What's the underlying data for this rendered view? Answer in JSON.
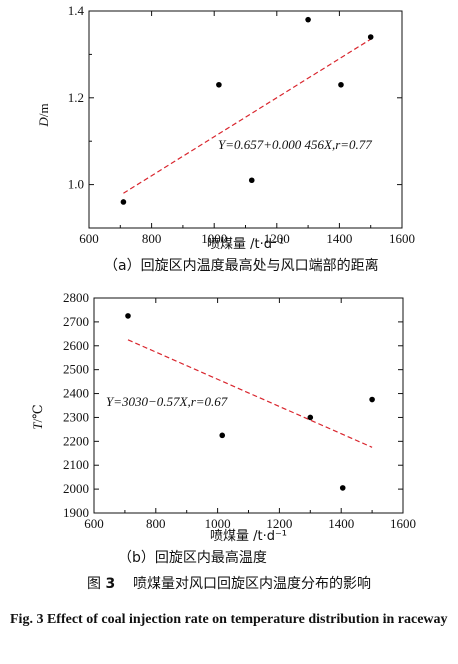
{
  "chart_data": [
    {
      "type": "scatter",
      "panel_label": "（a）",
      "subtitle": "回旋区内温度最高处与风口端部的距离",
      "xlabel": "喷煤量 /t·d⁻¹",
      "ylabel_var": "D",
      "ylabel_unit": "/m",
      "xlim": [
        600,
        1600
      ],
      "ylim": [
        0.9,
        1.4
      ],
      "xticks": [
        "600",
        "800",
        "1000",
        "1200",
        "1400",
        "1600"
      ],
      "yticks": [
        "1.0",
        "1.2",
        "1.4"
      ],
      "ytick_values": [
        1.0,
        1.2,
        1.4
      ],
      "points": [
        {
          "x": 710,
          "y": 0.96
        },
        {
          "x": 1015,
          "y": 1.23
        },
        {
          "x": 1120,
          "y": 1.01
        },
        {
          "x": 1300,
          "y": 1.38
        },
        {
          "x": 1405,
          "y": 1.23
        },
        {
          "x": 1500,
          "y": 1.34
        }
      ],
      "fit": {
        "x": [
          710,
          1500
        ],
        "y": [
          0.98,
          1.335
        ]
      },
      "equation": "Y=0.657+0.000 456X,r=0.77"
    },
    {
      "type": "scatter",
      "panel_label": "（b）",
      "subtitle": "回旋区内最高温度",
      "xlabel": "喷煤量 /t·d⁻¹",
      "ylabel_var": "T",
      "ylabel_unit": "/℃",
      "xlim": [
        600,
        1600
      ],
      "ylim": [
        1900,
        2800
      ],
      "xticks": [
        "600",
        "800",
        "1000",
        "1200",
        "1400",
        "1600"
      ],
      "yticks": [
        "1900",
        "2000",
        "2100",
        "2200",
        "2300",
        "2400",
        "2500",
        "2600",
        "2700",
        "2800"
      ],
      "ytick_values": [
        1900,
        2000,
        2100,
        2200,
        2300,
        2400,
        2500,
        2600,
        2700,
        2800
      ],
      "points": [
        {
          "x": 710,
          "y": 2725
        },
        {
          "x": 1015,
          "y": 2225
        },
        {
          "x": 1300,
          "y": 2300
        },
        {
          "x": 1405,
          "y": 2005
        },
        {
          "x": 1500,
          "y": 2375
        }
      ],
      "fit": {
        "x": [
          710,
          1500
        ],
        "y": [
          2625,
          2175
        ]
      },
      "equation": "Y=3030−0.57X,r=0.67"
    }
  ],
  "caption": {
    "prefix": "图",
    "number": "3",
    "text": "喷煤量对风口回旋区内温度分布的影响",
    "english": "Fig. 3 Effect of coal injection rate on temperature distribution in raceway"
  },
  "colors": {
    "fit_line": "#d9262e",
    "points": "#000000",
    "axes": "#111111"
  }
}
